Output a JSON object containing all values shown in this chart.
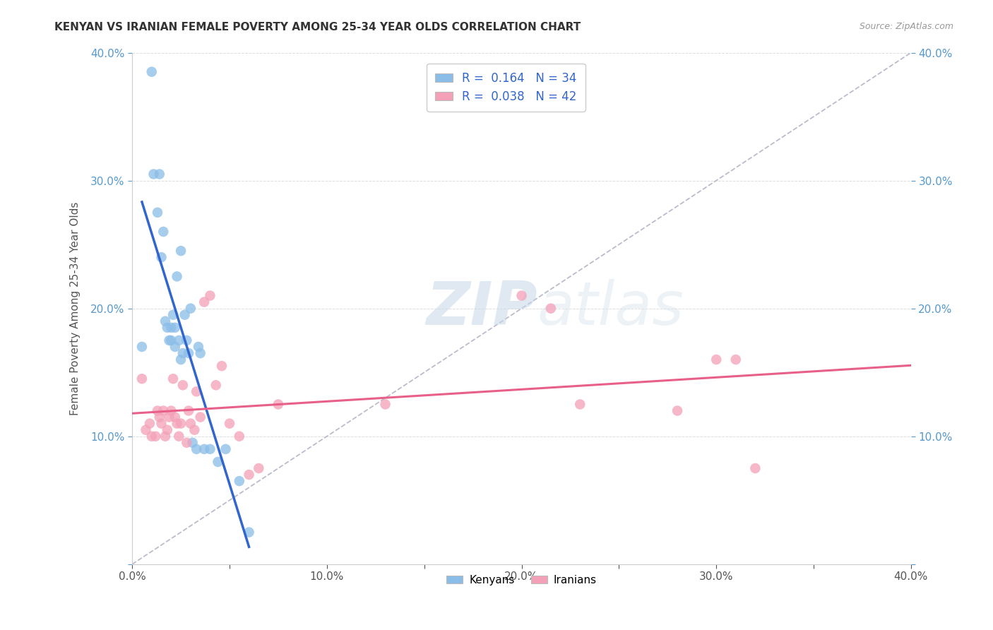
{
  "title": "KENYAN VS IRANIAN FEMALE POVERTY AMONG 25-34 YEAR OLDS CORRELATION CHART",
  "source": "Source: ZipAtlas.com",
  "ylabel": "Female Poverty Among 25-34 Year Olds",
  "xlim": [
    0.0,
    0.4
  ],
  "ylim": [
    0.0,
    0.4
  ],
  "xtick_labels": [
    "0.0%",
    "",
    "10.0%",
    "",
    "20.0%",
    "",
    "30.0%",
    "",
    "40.0%"
  ],
  "xtick_vals": [
    0.0,
    0.05,
    0.1,
    0.15,
    0.2,
    0.25,
    0.3,
    0.35,
    0.4
  ],
  "ytick_labels_left": [
    "",
    "10.0%",
    "20.0%",
    "30.0%",
    "40.0%"
  ],
  "ytick_labels_right": [
    "",
    "10.0%",
    "20.0%",
    "30.0%",
    "40.0%"
  ],
  "ytick_vals": [
    0.0,
    0.1,
    0.2,
    0.3,
    0.4
  ],
  "kenyan_R": "0.164",
  "kenyan_N": "34",
  "iranian_R": "0.038",
  "iranian_N": "42",
  "kenyan_color": "#8abde8",
  "iranian_color": "#f4a0b8",
  "kenyan_line_color": "#3366cc",
  "iranian_line_color": "#e8608a",
  "diagonal_color": "#bbbbcc",
  "background_color": "#ffffff",
  "watermark_zip": "ZIP",
  "watermark_atlas": "atlas",
  "kenyan_x": [
    0.005,
    0.01,
    0.013,
    0.015,
    0.016,
    0.017,
    0.018,
    0.019,
    0.02,
    0.02,
    0.021,
    0.022,
    0.022,
    0.023,
    0.024,
    0.025,
    0.026,
    0.027,
    0.028,
    0.029,
    0.03,
    0.031,
    0.033,
    0.034,
    0.035,
    0.037,
    0.04,
    0.044,
    0.048,
    0.055,
    0.06,
    0.011,
    0.014,
    0.025
  ],
  "kenyan_y": [
    0.17,
    0.385,
    0.275,
    0.24,
    0.26,
    0.19,
    0.185,
    0.175,
    0.185,
    0.175,
    0.195,
    0.17,
    0.185,
    0.225,
    0.175,
    0.16,
    0.165,
    0.195,
    0.175,
    0.165,
    0.2,
    0.095,
    0.09,
    0.17,
    0.165,
    0.09,
    0.09,
    0.08,
    0.09,
    0.065,
    0.025,
    0.305,
    0.305,
    0.245
  ],
  "iranian_x": [
    0.005,
    0.007,
    0.009,
    0.01,
    0.012,
    0.013,
    0.014,
    0.015,
    0.016,
    0.017,
    0.018,
    0.019,
    0.02,
    0.021,
    0.022,
    0.023,
    0.024,
    0.025,
    0.026,
    0.028,
    0.029,
    0.03,
    0.032,
    0.033,
    0.035,
    0.037,
    0.04,
    0.043,
    0.046,
    0.05,
    0.055,
    0.06,
    0.065,
    0.075,
    0.13,
    0.2,
    0.215,
    0.23,
    0.28,
    0.3,
    0.31,
    0.32
  ],
  "iranian_y": [
    0.145,
    0.105,
    0.11,
    0.1,
    0.1,
    0.12,
    0.115,
    0.11,
    0.12,
    0.1,
    0.105,
    0.115,
    0.12,
    0.145,
    0.115,
    0.11,
    0.1,
    0.11,
    0.14,
    0.095,
    0.12,
    0.11,
    0.105,
    0.135,
    0.115,
    0.205,
    0.21,
    0.14,
    0.155,
    0.11,
    0.1,
    0.07,
    0.075,
    0.125,
    0.125,
    0.21,
    0.2,
    0.125,
    0.12,
    0.16,
    0.16,
    0.075
  ]
}
